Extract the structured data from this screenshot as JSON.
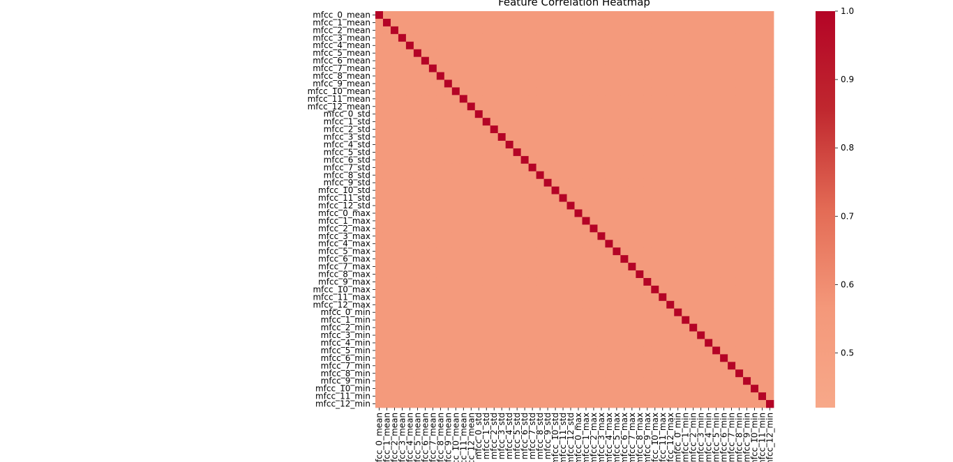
{
  "chart_data": {
    "type": "heatmap",
    "title": "Feature Correlation Heatmap",
    "labels": [
      "mfcc_0_mean",
      "mfcc_1_mean",
      "mfcc_2_mean",
      "mfcc_3_mean",
      "mfcc_4_mean",
      "mfcc_5_mean",
      "mfcc_6_mean",
      "mfcc_7_mean",
      "mfcc_8_mean",
      "mfcc_9_mean",
      "mfcc_10_mean",
      "mfcc_11_mean",
      "mfcc_12_mean",
      "mfcc_0_std",
      "mfcc_1_std",
      "mfcc_2_std",
      "mfcc_3_std",
      "mfcc_4_std",
      "mfcc_5_std",
      "mfcc_6_std",
      "mfcc_7_std",
      "mfcc_8_std",
      "mfcc_9_std",
      "mfcc_10_std",
      "mfcc_11_std",
      "mfcc_12_std",
      "mfcc_0_max",
      "mfcc_1_max",
      "mfcc_2_max",
      "mfcc_3_max",
      "mfcc_4_max",
      "mfcc_5_max",
      "mfcc_6_max",
      "mfcc_7_max",
      "mfcc_8_max",
      "mfcc_9_max",
      "mfcc_10_max",
      "mfcc_11_max",
      "mfcc_12_max",
      "mfcc_0_min",
      "mfcc_1_min",
      "mfcc_2_min",
      "mfcc_3_min",
      "mfcc_4_min",
      "mfcc_5_min",
      "mfcc_6_min",
      "mfcc_7_min",
      "mfcc_8_min",
      "mfcc_9_min",
      "mfcc_10_min",
      "mfcc_11_min",
      "mfcc_12_min"
    ],
    "diagonal_value": 1.0,
    "off_diagonal_value": 0.55,
    "colorbar": {
      "min": 0.42,
      "max": 1.0,
      "ticks": [
        "0.5",
        "0.6",
        "0.7",
        "0.8",
        "0.9",
        "1.0"
      ],
      "colors": [
        "#f7a889",
        "#f4987a",
        "#e36b55",
        "#c0282f",
        "#b40426"
      ]
    }
  }
}
